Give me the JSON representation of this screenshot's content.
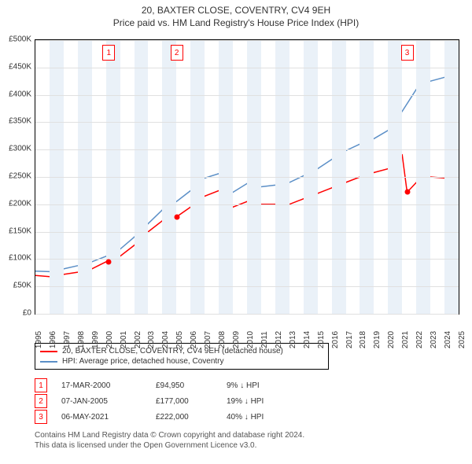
{
  "title_line1": "20, BAXTER CLOSE, COVENTRY, CV4 9EH",
  "title_line2": "Price paid vs. HM Land Registry's House Price Index (HPI)",
  "chart": {
    "type": "line",
    "background_color": "#ffffff",
    "band_color": "#eaf1f8",
    "grid_color": "#e0e0e0",
    "border_color": "#000000",
    "x_min": 1995,
    "x_max": 2025,
    "y_min": 0,
    "y_max": 500000,
    "y_ticks": [
      0,
      50000,
      100000,
      150000,
      200000,
      250000,
      300000,
      350000,
      400000,
      450000,
      500000
    ],
    "y_tick_labels": [
      "£0",
      "£50K",
      "£100K",
      "£150K",
      "£200K",
      "£250K",
      "£300K",
      "£350K",
      "£400K",
      "£450K",
      "£500K"
    ],
    "x_ticks": [
      1995,
      1996,
      1997,
      1998,
      1999,
      2000,
      2001,
      2002,
      2003,
      2004,
      2005,
      2006,
      2007,
      2008,
      2009,
      2010,
      2011,
      2012,
      2013,
      2014,
      2015,
      2016,
      2017,
      2018,
      2019,
      2020,
      2021,
      2022,
      2023,
      2024,
      2025
    ],
    "label_fontsize": 10,
    "title_fontsize": 12,
    "series": [
      {
        "name": "20, BAXTER CLOSE, COVENTRY, CV4 9EH (detached house)",
        "color": "#ff0000",
        "line_width": 1.5,
        "points": [
          [
            1995,
            70000
          ],
          [
            1996,
            68000
          ],
          [
            1997,
            72000
          ],
          [
            1998,
            76000
          ],
          [
            1999,
            82000
          ],
          [
            2000,
            94950
          ],
          [
            2001,
            105000
          ],
          [
            2002,
            125000
          ],
          [
            2003,
            150000
          ],
          [
            2004,
            170000
          ],
          [
            2005,
            177000
          ],
          [
            2006,
            195000
          ],
          [
            2007,
            215000
          ],
          [
            2008,
            225000
          ],
          [
            2008.7,
            200000
          ],
          [
            2009,
            195000
          ],
          [
            2010,
            205000
          ],
          [
            2011,
            200000
          ],
          [
            2012,
            200000
          ],
          [
            2013,
            200000
          ],
          [
            2014,
            210000
          ],
          [
            2015,
            220000
          ],
          [
            2016,
            230000
          ],
          [
            2017,
            240000
          ],
          [
            2018,
            250000
          ],
          [
            2019,
            258000
          ],
          [
            2020,
            265000
          ],
          [
            2021,
            290000
          ],
          [
            2021.35,
            222000
          ],
          [
            2022,
            240000
          ],
          [
            2023,
            250000
          ],
          [
            2024,
            248000
          ],
          [
            2025,
            255000
          ]
        ]
      },
      {
        "name": "HPI: Average price, detached house, Coventry",
        "color": "#5b8fc7",
        "line_width": 1.5,
        "points": [
          [
            1995,
            78000
          ],
          [
            1996,
            77000
          ],
          [
            1997,
            82000
          ],
          [
            1998,
            88000
          ],
          [
            1999,
            95000
          ],
          [
            2000,
            105000
          ],
          [
            2001,
            118000
          ],
          [
            2002,
            140000
          ],
          [
            2003,
            165000
          ],
          [
            2004,
            190000
          ],
          [
            2005,
            205000
          ],
          [
            2006,
            225000
          ],
          [
            2007,
            248000
          ],
          [
            2008,
            256000
          ],
          [
            2008.7,
            228000
          ],
          [
            2009,
            222000
          ],
          [
            2010,
            238000
          ],
          [
            2011,
            232000
          ],
          [
            2012,
            235000
          ],
          [
            2013,
            240000
          ],
          [
            2014,
            252000
          ],
          [
            2015,
            265000
          ],
          [
            2016,
            282000
          ],
          [
            2017,
            298000
          ],
          [
            2018,
            310000
          ],
          [
            2019,
            320000
          ],
          [
            2020,
            335000
          ],
          [
            2021,
            370000
          ],
          [
            2022,
            410000
          ],
          [
            2023,
            425000
          ],
          [
            2024,
            432000
          ],
          [
            2025,
            440000
          ]
        ]
      }
    ],
    "sale_markers": [
      {
        "n": "1",
        "x": 2000.2,
        "y": 94950,
        "date": "17-MAR-2000",
        "price": "£94,950",
        "pct": "9% ↓ HPI"
      },
      {
        "n": "2",
        "x": 2005.02,
        "y": 177000,
        "date": "07-JAN-2005",
        "price": "£177,000",
        "pct": "19% ↓ HPI"
      },
      {
        "n": "3",
        "x": 2021.35,
        "y": 222000,
        "date": "06-MAY-2021",
        "price": "£222,000",
        "pct": "40% ↓ HPI"
      }
    ],
    "marker_size": 7
  },
  "footer_line1": "Contains HM Land Registry data © Crown copyright and database right 2024.",
  "footer_line2": "This data is licensed under the Open Government Licence v3.0."
}
